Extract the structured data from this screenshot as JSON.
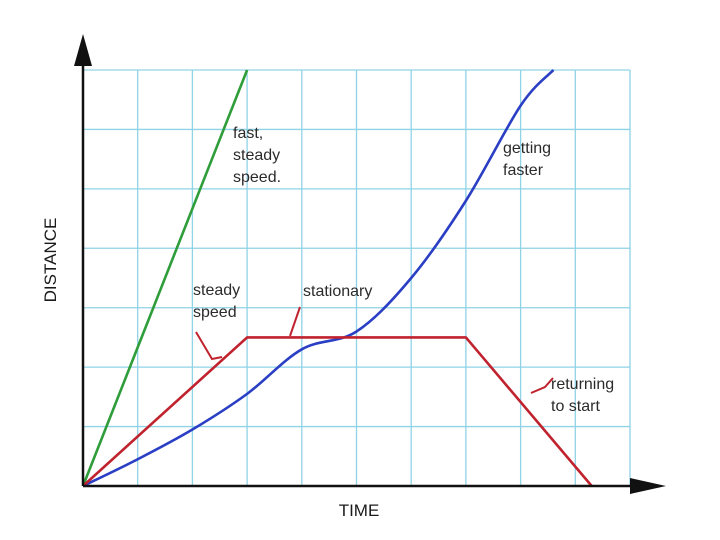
{
  "chart_data": {
    "type": "line",
    "xlabel": "TIME",
    "ylabel": "DISTANCE",
    "xlim": [
      0,
      10
    ],
    "ylim": [
      0,
      7
    ],
    "grid": true,
    "colors": {
      "grid": "#8fd3e6",
      "axis": "#111111",
      "fast_steady": "#2e9d3a",
      "getting_faster": "#2a3fc4",
      "red_journey": "#c0222e",
      "text": "#2b2b2b"
    },
    "series": [
      {
        "points": [
          [
            0,
            0
          ],
          [
            3,
            7
          ]
        ],
        "color": "#2e9d3a"
      },
      {
        "points": [
          [
            0,
            0
          ],
          [
            1,
            0.45
          ],
          [
            2,
            0.95
          ],
          [
            3,
            1.55
          ],
          [
            4,
            2.3
          ],
          [
            5,
            2.6
          ],
          [
            6,
            3.5
          ],
          [
            7,
            4.8
          ],
          [
            8,
            6.4
          ],
          [
            8.6,
            7
          ]
        ],
        "color": "#2a3fc4"
      },
      {
        "points": [
          [
            0,
            0
          ],
          [
            3,
            2.5
          ],
          [
            7,
            2.5
          ],
          [
            9.3,
            0
          ]
        ],
        "color": "#c0222e"
      }
    ],
    "annotations": [
      {
        "id": "fast",
        "lines": [
          "fast,",
          "steady",
          "speed."
        ],
        "x": 2.7,
        "y": 6.0
      },
      {
        "id": "faster",
        "lines": [
          "getting",
          "faster"
        ],
        "x": 7.9,
        "y": 5.7
      },
      {
        "id": "steady",
        "lines": [
          "steady",
          "speed"
        ],
        "x": 2.0,
        "y": 3.3
      },
      {
        "id": "stationary",
        "lines": [
          "stationary"
        ],
        "x": 4.0,
        "y": 3.3
      },
      {
        "id": "returning",
        "lines": [
          "returning",
          "to start"
        ],
        "x": 8.8,
        "y": 1.7
      }
    ]
  }
}
